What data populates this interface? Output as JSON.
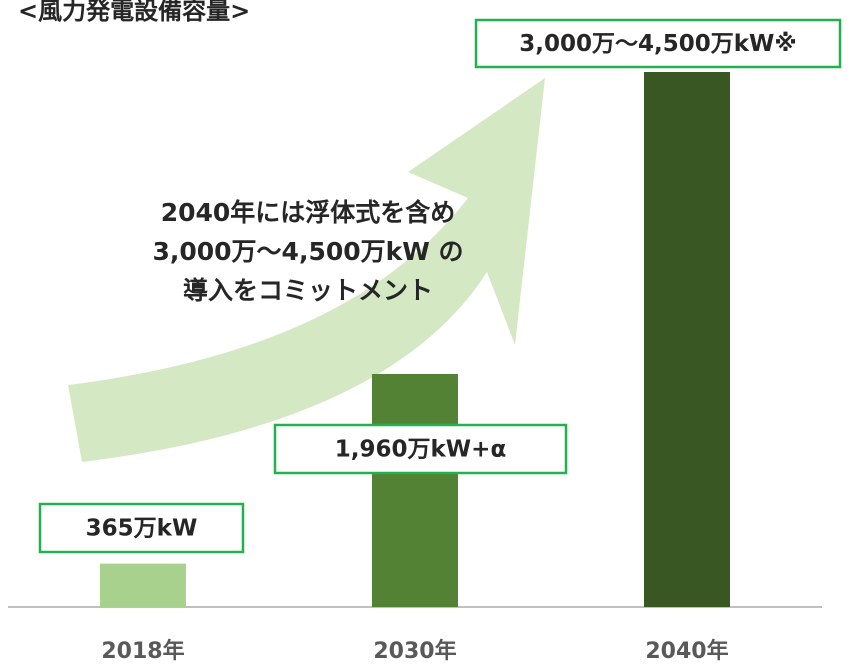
{
  "chart_data": {
    "type": "bar",
    "title": "<風力発電設備容量>",
    "categories": [
      "2018年",
      "2030年",
      "2040年"
    ],
    "values": [
      365,
      1960,
      4500
    ],
    "value_labels": [
      "365万kW",
      "1,960万kW+α",
      "3,000万～4,500万kW※"
    ],
    "colors": [
      "#a9d18e",
      "#548235",
      "#385723"
    ],
    "annotation": [
      "2040年には浮体式を含め",
      "3,000万～4,500万kW の",
      "導入をコミットメント"
    ]
  }
}
